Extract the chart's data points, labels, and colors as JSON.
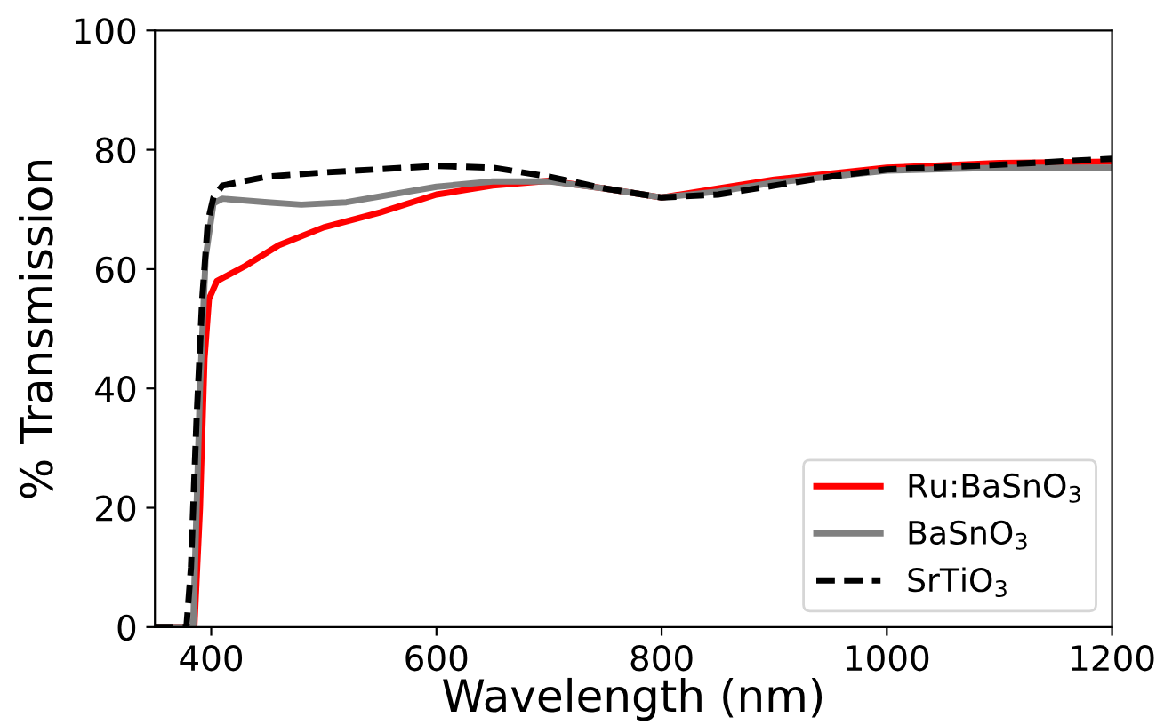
{
  "chart_data": {
    "type": "line",
    "xlabel": "Wavelength (nm)",
    "ylabel": "% Transmission",
    "xlim": [
      350,
      1200
    ],
    "ylim": [
      0,
      100
    ],
    "xticks": [
      400,
      600,
      800,
      1000,
      1200
    ],
    "yticks": [
      0,
      20,
      40,
      60,
      80,
      100
    ],
    "grid": false,
    "legend": "bottom right",
    "series": [
      {
        "name": "Ru:BaSnO$_{3}$",
        "color": "#ff0000",
        "line_style": "solid",
        "x": [
          350,
          385,
          390,
          394,
          398,
          405,
          430,
          460,
          500,
          550,
          600,
          650,
          700,
          750,
          800,
          850,
          900,
          950,
          1000,
          1100,
          1200
        ],
        "values": [
          0,
          0,
          20,
          45,
          55,
          58,
          60.5,
          64,
          67,
          69.5,
          72.5,
          74,
          74.8,
          73.5,
          72,
          73.5,
          75,
          76,
          77,
          77.8,
          78
        ]
      },
      {
        "name": "BaSnO$_{3}$",
        "color": "#808080",
        "line_style": "solid",
        "x": [
          350,
          384,
          390,
          395,
          402,
          410,
          450,
          480,
          520,
          600,
          650,
          700,
          750,
          800,
          850,
          900,
          950,
          1000,
          1100,
          1200
        ],
        "values": [
          0,
          0,
          40,
          62,
          71,
          71.8,
          71.2,
          70.8,
          71.2,
          73.8,
          74.7,
          74.7,
          73.5,
          72,
          73,
          74.5,
          75.5,
          76.5,
          77,
          77
        ]
      },
      {
        "name": "SrTiO$_{3}$",
        "color": "#000000",
        "line_style": "dashed",
        "x": [
          350,
          378,
          382,
          387,
          392,
          397,
          402,
          410,
          450,
          500,
          600,
          650,
          700,
          750,
          800,
          850,
          900,
          950,
          1000,
          1100,
          1200
        ],
        "values": [
          0,
          0,
          10,
          35,
          55,
          68,
          72,
          74,
          75.5,
          76.2,
          77.3,
          77,
          75.5,
          73.5,
          72,
          72.5,
          74,
          75.5,
          76.7,
          77.5,
          78.5
        ]
      }
    ]
  }
}
